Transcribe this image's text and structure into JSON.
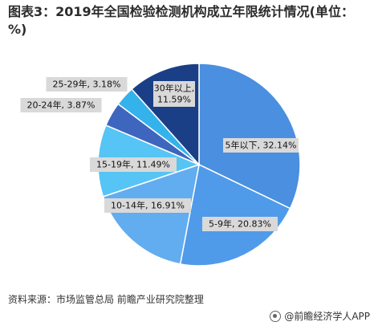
{
  "title": "图表3：2019年全国检验检测机构成立年限统计情况(单位：%)",
  "source": "资料来源：市场监管总局 前瞻产业研究院整理",
  "brand": "@前瞻经济学人APP",
  "chart_data": {
    "type": "pie",
    "slices": [
      {
        "label": "5年以下",
        "value": 32.14,
        "text": "5年以下, 32.14%",
        "color": "#4a8fe0"
      },
      {
        "label": "5-9年",
        "value": 20.83,
        "text": "5-9年, 20.83%",
        "color": "#4f9bea"
      },
      {
        "label": "10-14年",
        "value": 16.91,
        "text": "10-14年, 16.91%",
        "color": "#62acf0"
      },
      {
        "label": "15-19年",
        "value": 11.49,
        "text": "15-19年, 11.49%",
        "color": "#56c4f4"
      },
      {
        "label": "20-24年",
        "value": 3.87,
        "text": "20-24年, 3.87%",
        "color": "#3e66bf"
      },
      {
        "label": "25-29年",
        "value": 3.18,
        "text": "25-29年, 3.18%",
        "color": "#33b2ec"
      },
      {
        "label": "30年以上",
        "value": 11.59,
        "text": "30年以上,\n11.59%",
        "color": "#1b3f86"
      }
    ]
  }
}
